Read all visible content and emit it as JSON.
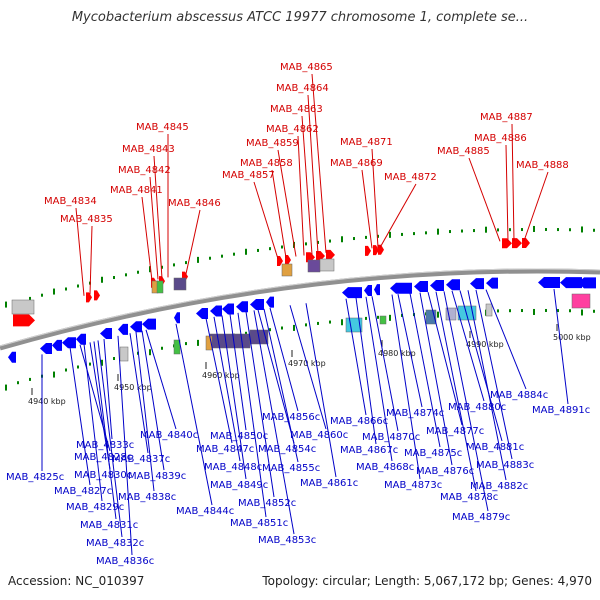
{
  "title": "Mycobacterium abscessus ATCC 19977 chromosome 1, complete se...",
  "footer": {
    "accession": "Accession: NC_010397",
    "summary": "Topology: circular; Length: 5,067,172 bp; Genes: 4,970"
  },
  "colors": {
    "forward_label": "#d40000",
    "reverse_label": "#0000c8",
    "forward_gene": "#ff0000",
    "reverse_gene": "#0000ff",
    "backbone": "#808080",
    "tick": "#008000"
  },
  "kbp_ticks": [
    "4940 kbp",
    "4950 kbp",
    "4960 kbp",
    "4970 kbp",
    "4980 kbp",
    "4990 kbp",
    "5000 kbp"
  ],
  "forward_genes": [
    "MAB_4834",
    "MAB_4835",
    "MAB_4841",
    "MAB_4842",
    "MAB_4843",
    "MAB_4845",
    "MAB_4846",
    "MAB_4857",
    "MAB_4858",
    "MAB_4859",
    "MAB_4862",
    "MAB_4863",
    "MAB_4864",
    "MAB_4865",
    "MAB_4869",
    "MAB_4871",
    "MAB_4872",
    "MAB_4885",
    "MAB_4886",
    "MAB_4887",
    "MAB_4888"
  ],
  "reverse_genes": [
    "MAB_4825c",
    "MAB_4827c",
    "MAB_4828c",
    "MAB_4829c",
    "MAB_4830c",
    "MAB_4831c",
    "MAB_4832c",
    "MAB_4833c",
    "MAB_4836c",
    "MAB_4837c",
    "MAB_4838c",
    "MAB_4839c",
    "MAB_4840c",
    "MAB_4844c",
    "MAB_4847c",
    "MAB_4848c",
    "MAB_4849c",
    "MAB_4850c",
    "MAB_4851c",
    "MAB_4852c",
    "MAB_4853c",
    "MAB_4854c",
    "MAB_4855c",
    "MAB_4856c",
    "MAB_4860c",
    "MAB_4861c",
    "MAB_4866c",
    "MAB_4867c",
    "MAB_4868c",
    "MAB_4870c",
    "MAB_4873c",
    "MAB_4874c",
    "MAB_4875c",
    "MAB_4876c",
    "MAB_4877c",
    "MAB_4878c",
    "MAB_4879c",
    "MAB_4880c",
    "MAB_4881c",
    "MAB_4882c",
    "MAB_4883c",
    "MAB_4884c",
    "MAB_4891c"
  ]
}
